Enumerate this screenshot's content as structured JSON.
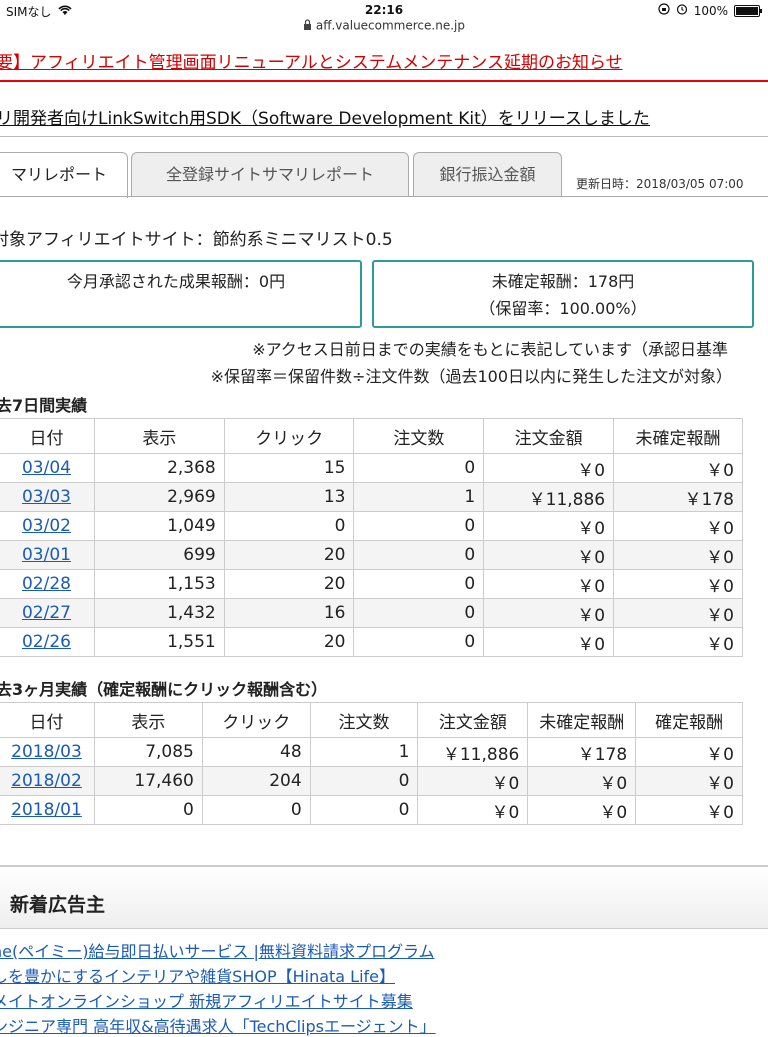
{
  "status": {
    "carrier": "SIMなし",
    "time": "22:16",
    "battery": "100%"
  },
  "url": "aff.valuecommerce.ne.jp",
  "notices": [
    "要】アフィリエイト管理画面リニューアルとシステムメンテナンス延期のお知らせ",
    "リ開発者向けLinkSwitch用SDK（Software Development Kit）をリリースしました"
  ],
  "tabs": [
    "マリレポート",
    "全登録サイトサマリレポート",
    "銀行振込金額"
  ],
  "updated": "更新日時：2018/03/05 07:00",
  "site": "対象アフィリエイトサイト：節約系ミニマリスト0.5",
  "box1": {
    "line1": "今月承認された成果報酬：0円"
  },
  "box2": {
    "line1": "未確定報酬：178円",
    "line2": "（保留率：100.00%）"
  },
  "notes": [
    "※アクセス日前日までの実績をもとに表記しています（承認日基準",
    "※保留率＝保留件数÷注文件数（過去100日以内に発生した注文が対象）"
  ],
  "week": {
    "title": "去7日間実績",
    "headers": [
      "日付",
      "表示",
      "クリック",
      "注文数",
      "注文金額",
      "未確定報酬"
    ],
    "rows": [
      [
        "03/04",
        "2,368",
        "15",
        "0",
        "￥0",
        "￥0"
      ],
      [
        "03/03",
        "2,969",
        "13",
        "1",
        "￥11,886",
        "￥178"
      ],
      [
        "03/02",
        "1,049",
        "0",
        "0",
        "￥0",
        "￥0"
      ],
      [
        "03/01",
        "699",
        "20",
        "0",
        "￥0",
        "￥0"
      ],
      [
        "02/28",
        "1,153",
        "20",
        "0",
        "￥0",
        "￥0"
      ],
      [
        "02/27",
        "1,432",
        "16",
        "0",
        "￥0",
        "￥0"
      ],
      [
        "02/26",
        "1,551",
        "20",
        "0",
        "￥0",
        "￥0"
      ]
    ]
  },
  "month": {
    "title": "去3ヶ月実績（確定報酬にクリック報酬含む）",
    "headers": [
      "日付",
      "表示",
      "クリック",
      "注文数",
      "注文金額",
      "未確定報酬",
      "確定報酬"
    ],
    "rows": [
      [
        "2018/03",
        "7,085",
        "48",
        "1",
        "￥11,886",
        "￥178",
        "￥0"
      ],
      [
        "2018/02",
        "17,460",
        "204",
        "0",
        "￥0",
        "￥0",
        "￥0"
      ],
      [
        "2018/01",
        "0",
        "0",
        "0",
        "￥0",
        "￥0",
        "￥0"
      ]
    ]
  },
  "new_advertisers": {
    "title": "新着広告主",
    "links": [
      "ne(ペイミー)給与即日払いサービス |無料資料請求プログラム",
      "しを豊かにするインテリアや雑貨SHOP【Hinata Life】",
      "メイトオンラインショップ 新規アフィリエイトサイト募集",
      "ンジニア専門 高年収&高待遇求人「TechClipsエージェント」"
    ]
  }
}
